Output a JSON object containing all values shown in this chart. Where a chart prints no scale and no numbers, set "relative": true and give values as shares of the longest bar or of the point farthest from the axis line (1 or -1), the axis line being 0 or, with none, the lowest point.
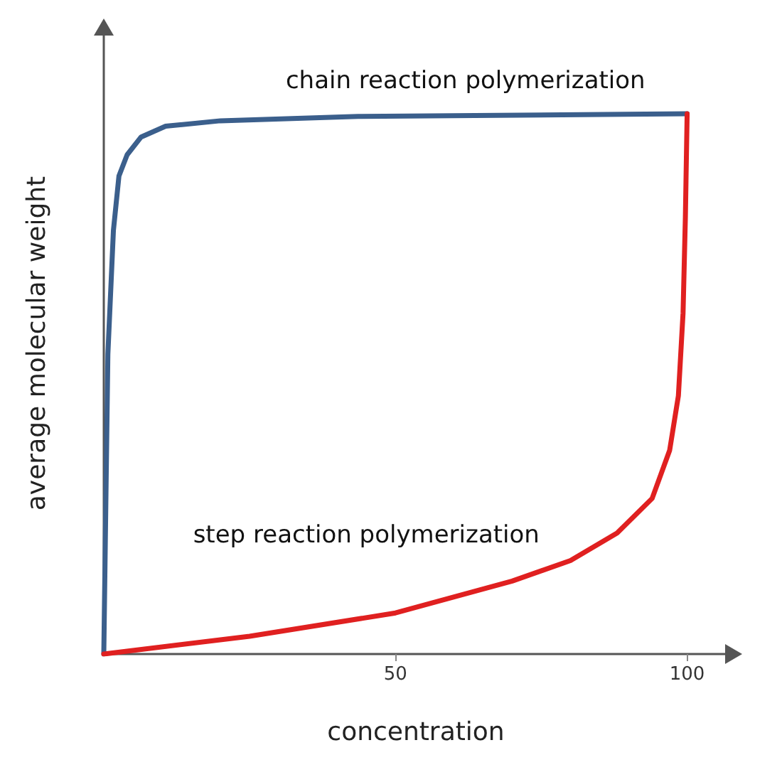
{
  "chart_data": {
    "type": "line",
    "xlabel": "concentration",
    "ylabel": "average molecular weight",
    "relative": true,
    "xlim": [
      0,
      107
    ],
    "xticks": [
      50,
      100
    ],
    "grid": false,
    "legend": false,
    "marker": "none",
    "line_style": "solid",
    "series": [
      {
        "name": "chain reaction polymerization",
        "color": "#3b5f8c",
        "x": [
          0,
          0.7,
          1.65,
          2.6,
          4,
          6.4,
          10.6,
          20,
          43.6,
          100
        ],
        "values": [
          0,
          0.555,
          0.784,
          0.885,
          0.924,
          0.957,
          0.977,
          0.987,
          0.995,
          1
        ]
      },
      {
        "name": "step reaction polymerization",
        "color": "#e02020",
        "x": [
          0,
          25,
          50,
          70,
          80,
          88,
          94,
          97,
          98.5,
          99.3,
          99.7,
          100
        ],
        "values": [
          0,
          0.033,
          0.076,
          0.135,
          0.173,
          0.224,
          0.288,
          0.377,
          0.478,
          0.631,
          0.809,
          1
        ]
      }
    ]
  }
}
